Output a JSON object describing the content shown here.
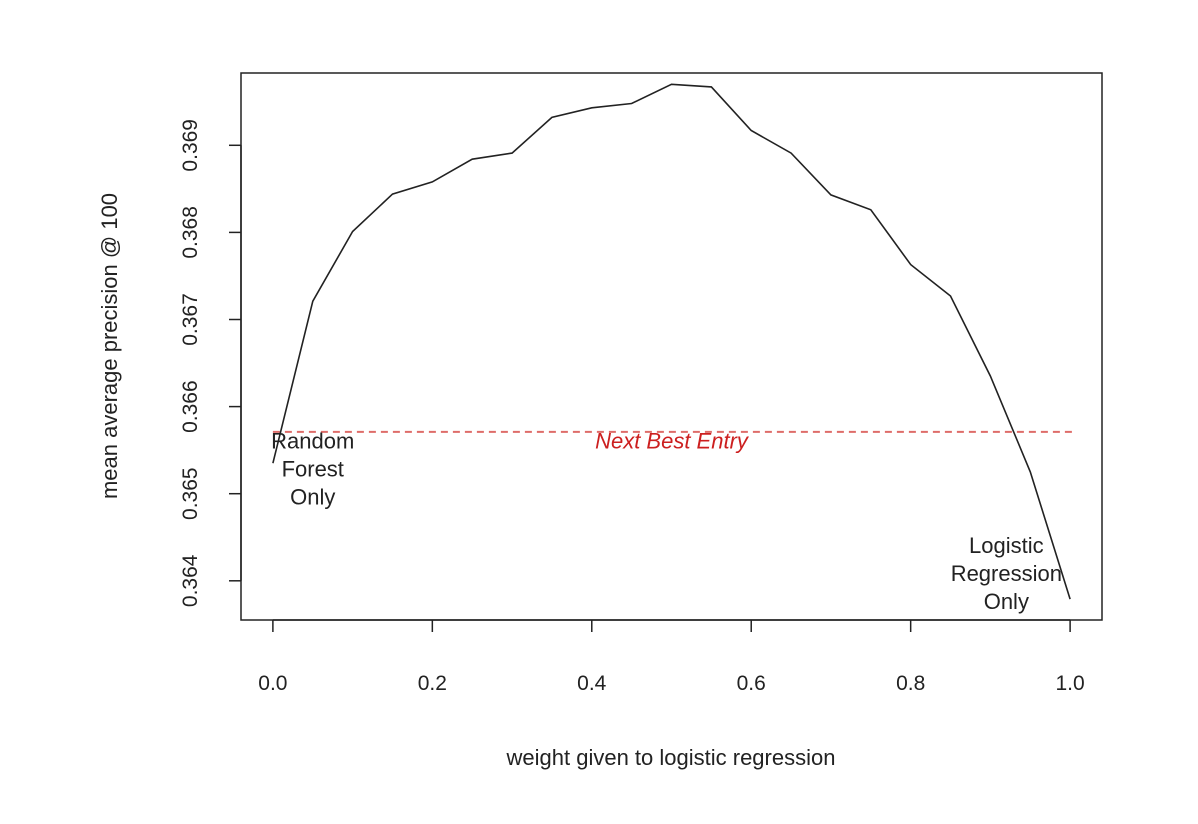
{
  "chart_data": {
    "type": "line",
    "title": "",
    "xlabel": "weight given to logistic regression",
    "ylabel": "mean average precision @ 100",
    "xlim": [
      -0.04,
      1.04
    ],
    "ylim": [
      0.36355,
      0.36983
    ],
    "x_ticks": [
      "0.0",
      "0.2",
      "0.4",
      "0.6",
      "0.8",
      "1.0"
    ],
    "x_tick_values": [
      0.0,
      0.2,
      0.4,
      0.6,
      0.8,
      1.0
    ],
    "y_ticks": [
      "0.364",
      "0.365",
      "0.366",
      "0.367",
      "0.368",
      "0.369"
    ],
    "y_tick_values": [
      0.364,
      0.365,
      0.366,
      0.367,
      0.368,
      0.369
    ],
    "grid": false,
    "series": [
      {
        "color": "#222222",
        "x": [
          0.0,
          0.05,
          0.1,
          0.15,
          0.2,
          0.25,
          0.3,
          0.35,
          0.4,
          0.45,
          0.5,
          0.55,
          0.6,
          0.65,
          0.7,
          0.75,
          0.8,
          0.85,
          0.9,
          0.95,
          1.0
        ],
        "y": [
          0.36535,
          0.36721,
          0.36801,
          0.36844,
          0.36858,
          0.36884,
          0.36891,
          0.36932,
          0.36943,
          0.36948,
          0.3697,
          0.36967,
          0.36917,
          0.36891,
          0.36843,
          0.36826,
          0.36763,
          0.36727,
          0.36635,
          0.36525,
          0.36379
        ]
      }
    ],
    "reference_line": {
      "y": 0.36571,
      "color": "#d9534f",
      "style": "dashed"
    },
    "annotations": [
      {
        "lines": [
          "Random",
          "Forest",
          "Only"
        ],
        "x": 0.05,
        "y": 0.36552,
        "color": "#222222"
      },
      {
        "lines": [
          "Next Best Entry"
        ],
        "x": 0.5,
        "y": 0.36552,
        "color": "#cc1f1f",
        "italic": true
      },
      {
        "lines": [
          "Logistic",
          "Regression",
          "Only"
        ],
        "x": 0.92,
        "y": 0.36432,
        "color": "#222222"
      }
    ]
  }
}
